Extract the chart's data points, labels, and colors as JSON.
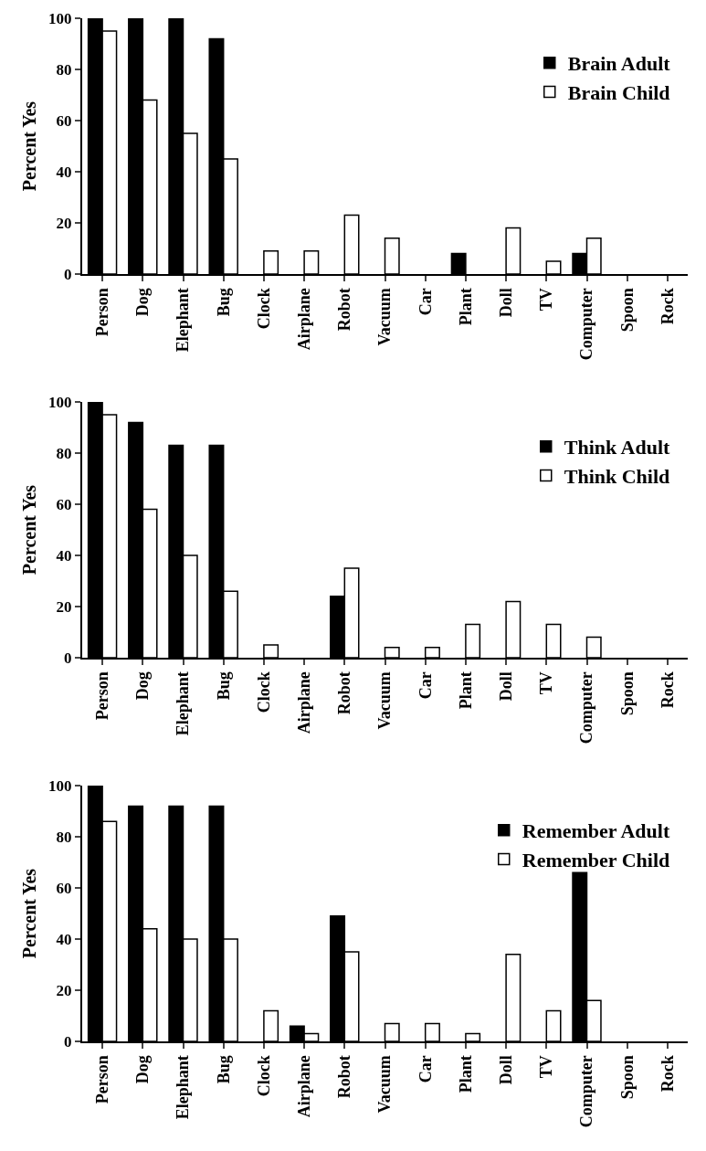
{
  "chart_data": [
    {
      "type": "bar",
      "ylabel": "Percent Yes",
      "categories": [
        "Person",
        "Dog",
        "Elephant",
        "Bug",
        "Clock",
        "Airplane",
        "Robot",
        "Vacuum",
        "Car",
        "Plant",
        "Doll",
        "TV",
        "Computer",
        "Spoon",
        "Rock"
      ],
      "ylim": [
        0,
        100
      ],
      "yticks": [
        0,
        20,
        40,
        60,
        80,
        100
      ],
      "grid": false,
      "legend": "top right",
      "series": [
        {
          "name": "Brain Adult",
          "color": "#000000",
          "values": [
            100,
            100,
            100,
            92,
            0,
            0,
            0,
            0,
            0,
            8,
            0,
            0,
            8,
            0,
            0
          ]
        },
        {
          "name": "Brain Child",
          "color": "#ffffff",
          "values": [
            95,
            68,
            55,
            45,
            9,
            9,
            23,
            14,
            0,
            0,
            18,
            5,
            14,
            0,
            0
          ]
        }
      ]
    },
    {
      "type": "bar",
      "ylabel": "Percent Yes",
      "categories": [
        "Person",
        "Dog",
        "Elephant",
        "Bug",
        "Clock",
        "Airplane",
        "Robot",
        "Vacuum",
        "Car",
        "Plant",
        "Doll",
        "TV",
        "Computer",
        "Spoon",
        "Rock"
      ],
      "ylim": [
        0,
        100
      ],
      "yticks": [
        0,
        20,
        40,
        60,
        80,
        100
      ],
      "grid": false,
      "legend": "top right",
      "series": [
        {
          "name": "Think Adult",
          "color": "#000000",
          "values": [
            100,
            92,
            83,
            83,
            0,
            0,
            24,
            0,
            0,
            0,
            0,
            0,
            0,
            0,
            0
          ]
        },
        {
          "name": "Think Child",
          "color": "#ffffff",
          "values": [
            95,
            58,
            40,
            26,
            5,
            0,
            35,
            4,
            4,
            13,
            22,
            13,
            8,
            0,
            0
          ]
        }
      ]
    },
    {
      "type": "bar",
      "ylabel": "Percent Yes",
      "categories": [
        "Person",
        "Dog",
        "Elephant",
        "Bug",
        "Clock",
        "Airplane",
        "Robot",
        "Vacuum",
        "Car",
        "Plant",
        "Doll",
        "TV",
        "Computer",
        "Spoon",
        "Rock"
      ],
      "ylim": [
        0,
        100
      ],
      "yticks": [
        0,
        20,
        40,
        60,
        80,
        100
      ],
      "grid": false,
      "legend": "top right",
      "series": [
        {
          "name": "Remember Adult",
          "color": "#000000",
          "values": [
            100,
            92,
            92,
            92,
            0,
            6,
            49,
            0,
            0,
            0,
            0,
            0,
            66,
            0,
            0
          ]
        },
        {
          "name": "Remember Child",
          "color": "#ffffff",
          "values": [
            86,
            44,
            40,
            40,
            12,
            3,
            35,
            7,
            7,
            3,
            34,
            12,
            16,
            0,
            0
          ]
        }
      ]
    }
  ]
}
